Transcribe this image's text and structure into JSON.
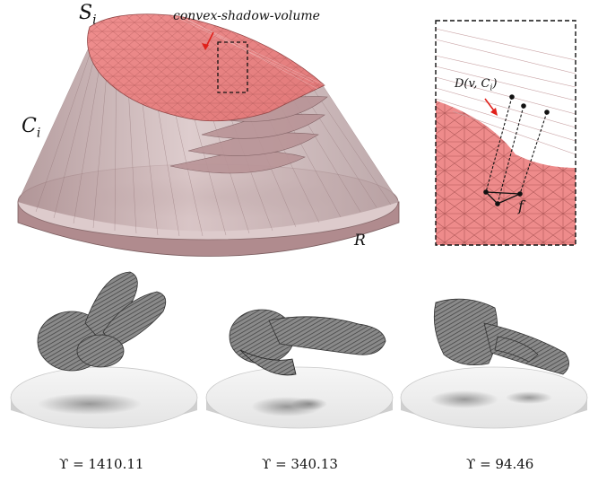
{
  "figure": {
    "top_left": {
      "label_surface": "S",
      "label_surface_sub": "i",
      "label_cone": "C",
      "label_cone_sub": "i",
      "label_plane": "R",
      "annotation": "convex-shadow-volume"
    },
    "inset": {
      "label_distance": "D(v, C",
      "label_distance_sub": "i",
      "label_distance_end": ")",
      "label_face": "f"
    },
    "bunnies": [
      {
        "caption": "ϒ = 1410.11"
      },
      {
        "caption": "ϒ = 340.13"
      },
      {
        "caption": "ϒ = 94.46"
      }
    ]
  },
  "colors": {
    "mesh_red": "#e48a8a",
    "cone_pink": "#c9a9ab",
    "base_pink": "#b89194",
    "bunny_gray": "#7d7d7d",
    "pedestal": "#e9e9e9",
    "arrow_red": "#e0201a"
  }
}
